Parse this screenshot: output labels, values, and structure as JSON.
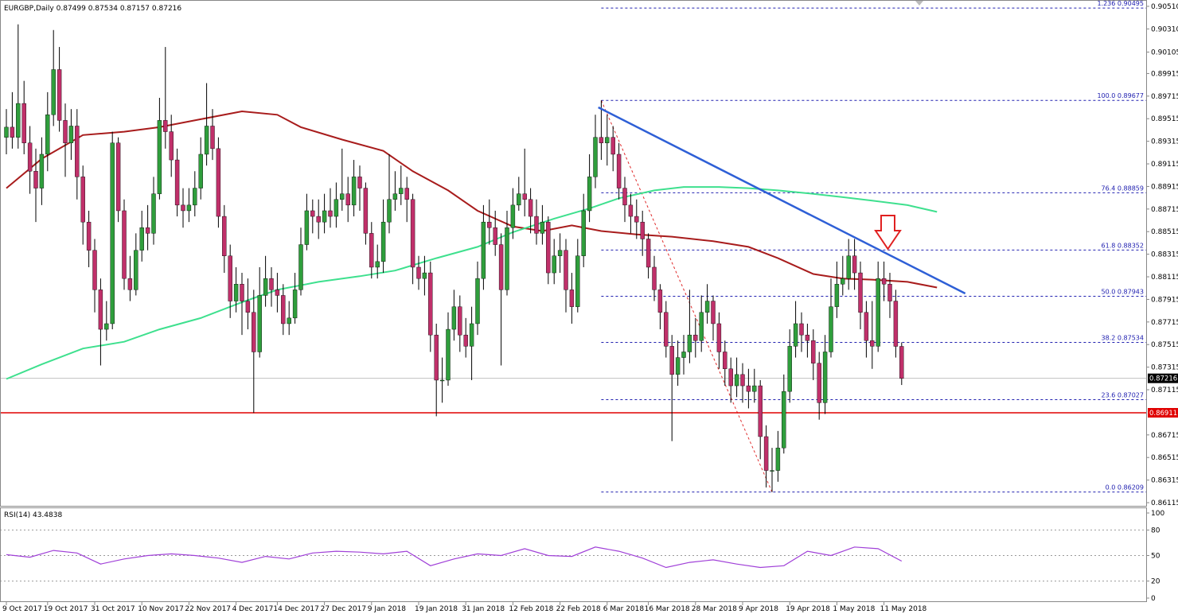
{
  "chart_data": {
    "type": "candlestick",
    "symbol": "EURGBP,Daily",
    "up_color": "#2f9e3c",
    "down_color": "#c0306a",
    "ylim": [
      0.86087,
      0.90566
    ],
    "yticks": [
      {
        "value": 0.9051,
        "label": "0.90510"
      },
      {
        "value": 0.9031,
        "label": "0.90310"
      },
      {
        "value": 0.90105,
        "label": "0.90105"
      },
      {
        "value": 0.89915,
        "label": "0.89915"
      },
      {
        "value": 0.89715,
        "label": "0.89715"
      },
      {
        "value": 0.89515,
        "label": "0.89515"
      },
      {
        "value": 0.89315,
        "label": "0.89315"
      },
      {
        "value": 0.89115,
        "label": "0.89115"
      },
      {
        "value": 0.88915,
        "label": "0.88915"
      },
      {
        "value": 0.88715,
        "label": "0.88715"
      },
      {
        "value": 0.88515,
        "label": "0.88515"
      },
      {
        "value": 0.88315,
        "label": "0.88315"
      },
      {
        "value": 0.88115,
        "label": "0.88115"
      },
      {
        "value": 0.87915,
        "label": "0.87915"
      },
      {
        "value": 0.87715,
        "label": "0.87715"
      },
      {
        "value": 0.87515,
        "label": "0.87515"
      },
      {
        "value": 0.87315,
        "label": "0.87315"
      },
      {
        "value": 0.87115,
        "label": "0.87115"
      },
      {
        "value": 0.86715,
        "label": "0.86715"
      },
      {
        "value": 0.86515,
        "label": "0.86515"
      },
      {
        "value": 0.86315,
        "label": "0.86315"
      },
      {
        "value": 0.86115,
        "label": "0.86115"
      }
    ],
    "xticks": [
      {
        "value": 0,
        "label": "9 Oct 2017"
      },
      {
        "value": 7,
        "label": "19 Oct 2017"
      },
      {
        "value": 15,
        "label": "31 Oct 2017"
      },
      {
        "value": 23,
        "label": "10 Nov 2017"
      },
      {
        "value": 31,
        "label": "22 Nov 2017"
      },
      {
        "value": 39,
        "label": "4 Dec 2017"
      },
      {
        "value": 46,
        "label": "14 Dec 2017"
      },
      {
        "value": 54,
        "label": "27 Dec 2017"
      },
      {
        "value": 62,
        "label": "9 Jan 2018"
      },
      {
        "value": 70,
        "label": "19 Jan 2018"
      },
      {
        "value": 78,
        "label": "31 Jan 2018"
      },
      {
        "value": 86,
        "label": "12 Feb 2018"
      },
      {
        "value": 94,
        "label": "22 Feb 2018"
      },
      {
        "value": 102,
        "label": "6 Mar 2018"
      },
      {
        "value": 109,
        "label": "16 Mar 2018"
      },
      {
        "value": 117,
        "label": "28 Mar 2018"
      },
      {
        "value": 125,
        "label": "9 Apr 2018"
      },
      {
        "value": 133,
        "label": "19 Apr 2018"
      },
      {
        "value": 141,
        "label": "1 May 2018"
      },
      {
        "value": 149,
        "label": "11 May 2018"
      }
    ],
    "ohlc": [
      [
        0.8935,
        0.896,
        0.892,
        0.8944
      ],
      [
        0.8944,
        0.8975,
        0.8925,
        0.8935
      ],
      [
        0.8935,
        0.9035,
        0.8925,
        0.8965
      ],
      [
        0.8965,
        0.8985,
        0.892,
        0.893
      ],
      [
        0.893,
        0.8945,
        0.8885,
        0.8905
      ],
      [
        0.8905,
        0.8925,
        0.886,
        0.889
      ],
      [
        0.889,
        0.8935,
        0.8875,
        0.892
      ],
      [
        0.892,
        0.8975,
        0.8905,
        0.8955
      ],
      [
        0.8955,
        0.903,
        0.8945,
        0.8995
      ],
      [
        0.8995,
        0.9015,
        0.894,
        0.895
      ],
      [
        0.895,
        0.8965,
        0.89,
        0.893
      ],
      [
        0.893,
        0.896,
        0.8915,
        0.8945
      ],
      [
        0.8945,
        0.896,
        0.888,
        0.89
      ],
      [
        0.89,
        0.891,
        0.884,
        0.886
      ],
      [
        0.886,
        0.887,
        0.882,
        0.8835
      ],
      [
        0.8835,
        0.8845,
        0.878,
        0.88
      ],
      [
        0.88,
        0.881,
        0.8733,
        0.8765
      ],
      [
        0.8765,
        0.879,
        0.8755,
        0.877
      ],
      [
        0.877,
        0.894,
        0.8765,
        0.893
      ],
      [
        0.893,
        0.8935,
        0.886,
        0.887
      ],
      [
        0.887,
        0.888,
        0.88,
        0.881
      ],
      [
        0.881,
        0.883,
        0.879,
        0.88
      ],
      [
        0.88,
        0.885,
        0.8795,
        0.8835
      ],
      [
        0.8835,
        0.887,
        0.8825,
        0.8855
      ],
      [
        0.8855,
        0.8875,
        0.8835,
        0.885
      ],
      [
        0.885,
        0.89,
        0.884,
        0.8885
      ],
      [
        0.8885,
        0.897,
        0.888,
        0.895
      ],
      [
        0.895,
        0.9015,
        0.8925,
        0.894
      ],
      [
        0.894,
        0.8955,
        0.89,
        0.8915
      ],
      [
        0.8915,
        0.8925,
        0.8865,
        0.8875
      ],
      [
        0.8875,
        0.889,
        0.8855,
        0.887
      ],
      [
        0.887,
        0.889,
        0.886,
        0.8875
      ],
      [
        0.8875,
        0.8905,
        0.8865,
        0.889
      ],
      [
        0.889,
        0.8935,
        0.888,
        0.892
      ],
      [
        0.892,
        0.8983,
        0.891,
        0.8945
      ],
      [
        0.8945,
        0.896,
        0.8915,
        0.8925
      ],
      [
        0.8925,
        0.8935,
        0.8855,
        0.8865
      ],
      [
        0.8865,
        0.8875,
        0.8815,
        0.883
      ],
      [
        0.883,
        0.884,
        0.8775,
        0.879
      ],
      [
        0.879,
        0.882,
        0.878,
        0.8805
      ],
      [
        0.8805,
        0.8815,
        0.876,
        0.879
      ],
      [
        0.879,
        0.881,
        0.8765,
        0.878
      ],
      [
        0.878,
        0.88,
        0.8691,
        0.8745
      ],
      [
        0.8745,
        0.882,
        0.874,
        0.8795
      ],
      [
        0.8795,
        0.883,
        0.8785,
        0.881
      ],
      [
        0.881,
        0.882,
        0.8785,
        0.88
      ],
      [
        0.88,
        0.8815,
        0.878,
        0.8795
      ],
      [
        0.8795,
        0.8805,
        0.876,
        0.877
      ],
      [
        0.877,
        0.879,
        0.876,
        0.8775
      ],
      [
        0.8775,
        0.8815,
        0.877,
        0.88
      ],
      [
        0.88,
        0.8855,
        0.8795,
        0.884
      ],
      [
        0.884,
        0.8885,
        0.8835,
        0.887
      ],
      [
        0.887,
        0.888,
        0.885,
        0.8865
      ],
      [
        0.8865,
        0.888,
        0.8845,
        0.886
      ],
      [
        0.886,
        0.8885,
        0.885,
        0.887
      ],
      [
        0.887,
        0.889,
        0.8855,
        0.8865
      ],
      [
        0.8865,
        0.8895,
        0.8855,
        0.888
      ],
      [
        0.888,
        0.8925,
        0.887,
        0.8885
      ],
      [
        0.8885,
        0.89,
        0.886,
        0.8875
      ],
      [
        0.8875,
        0.8915,
        0.8865,
        0.89
      ],
      [
        0.89,
        0.891,
        0.887,
        0.889
      ],
      [
        0.889,
        0.8895,
        0.884,
        0.885
      ],
      [
        0.885,
        0.886,
        0.881,
        0.882
      ],
      [
        0.882,
        0.884,
        0.881,
        0.8825
      ],
      [
        0.8825,
        0.888,
        0.8815,
        0.886
      ],
      [
        0.886,
        0.892,
        0.885,
        0.888
      ],
      [
        0.888,
        0.8905,
        0.887,
        0.8885
      ],
      [
        0.8885,
        0.891,
        0.8875,
        0.889
      ],
      [
        0.889,
        0.89,
        0.886,
        0.888
      ],
      [
        0.888,
        0.8885,
        0.8805,
        0.882
      ],
      [
        0.882,
        0.883,
        0.88,
        0.881
      ],
      [
        0.881,
        0.883,
        0.8795,
        0.8815
      ],
      [
        0.8815,
        0.8825,
        0.8745,
        0.876
      ],
      [
        0.876,
        0.877,
        0.8688,
        0.872
      ],
      [
        0.872,
        0.874,
        0.87,
        0.872
      ],
      [
        0.872,
        0.878,
        0.8715,
        0.8765
      ],
      [
        0.8765,
        0.88,
        0.8755,
        0.8785
      ],
      [
        0.8785,
        0.8795,
        0.8745,
        0.876
      ],
      [
        0.876,
        0.8775,
        0.874,
        0.875
      ],
      [
        0.875,
        0.8785,
        0.872,
        0.877
      ],
      [
        0.877,
        0.8825,
        0.876,
        0.881
      ],
      [
        0.881,
        0.8875,
        0.88,
        0.886
      ],
      [
        0.886,
        0.888,
        0.884,
        0.8855
      ],
      [
        0.8855,
        0.887,
        0.883,
        0.884
      ],
      [
        0.884,
        0.885,
        0.8733,
        0.88
      ],
      [
        0.88,
        0.887,
        0.8795,
        0.8855
      ],
      [
        0.8855,
        0.889,
        0.8845,
        0.8875
      ],
      [
        0.8875,
        0.89,
        0.887,
        0.8885
      ],
      [
        0.8885,
        0.8925,
        0.8865,
        0.888
      ],
      [
        0.888,
        0.889,
        0.885,
        0.8865
      ],
      [
        0.8865,
        0.888,
        0.884,
        0.885
      ],
      [
        0.885,
        0.8875,
        0.884,
        0.886
      ],
      [
        0.886,
        0.8865,
        0.8805,
        0.8815
      ],
      [
        0.8815,
        0.8845,
        0.8805,
        0.883
      ],
      [
        0.883,
        0.885,
        0.8815,
        0.8835
      ],
      [
        0.8835,
        0.8845,
        0.878,
        0.88
      ],
      [
        0.88,
        0.8815,
        0.877,
        0.8785
      ],
      [
        0.8785,
        0.8845,
        0.878,
        0.883
      ],
      [
        0.883,
        0.8885,
        0.882,
        0.887
      ],
      [
        0.887,
        0.892,
        0.886,
        0.89
      ],
      [
        0.89,
        0.8955,
        0.889,
        0.8935
      ],
      [
        0.8935,
        0.89677,
        0.8915,
        0.893
      ],
      [
        0.893,
        0.8955,
        0.891,
        0.8935
      ],
      [
        0.8935,
        0.8945,
        0.8905,
        0.892
      ],
      [
        0.892,
        0.893,
        0.888,
        0.889
      ],
      [
        0.889,
        0.89,
        0.886,
        0.8875
      ],
      [
        0.8875,
        0.8885,
        0.885,
        0.8865
      ],
      [
        0.8865,
        0.888,
        0.8845,
        0.886
      ],
      [
        0.886,
        0.887,
        0.883,
        0.8845
      ],
      [
        0.8845,
        0.885,
        0.881,
        0.882
      ],
      [
        0.882,
        0.883,
        0.879,
        0.88
      ],
      [
        0.88,
        0.8805,
        0.8765,
        0.878
      ],
      [
        0.878,
        0.879,
        0.874,
        0.875
      ],
      [
        0.875,
        0.876,
        0.8666,
        0.8725
      ],
      [
        0.8725,
        0.8755,
        0.8715,
        0.874
      ],
      [
        0.874,
        0.876,
        0.8725,
        0.8745
      ],
      [
        0.8745,
        0.88,
        0.8735,
        0.876
      ],
      [
        0.876,
        0.8775,
        0.874,
        0.8755
      ],
      [
        0.8755,
        0.8795,
        0.8745,
        0.878
      ],
      [
        0.878,
        0.8805,
        0.877,
        0.879
      ],
      [
        0.879,
        0.8795,
        0.8755,
        0.877
      ],
      [
        0.877,
        0.878,
        0.873,
        0.8745
      ],
      [
        0.8745,
        0.8755,
        0.8715,
        0.873
      ],
      [
        0.873,
        0.874,
        0.87,
        0.8715
      ],
      [
        0.8715,
        0.874,
        0.8705,
        0.8725
      ],
      [
        0.8725,
        0.8735,
        0.87,
        0.8715
      ],
      [
        0.8715,
        0.873,
        0.8695,
        0.871
      ],
      [
        0.871,
        0.873,
        0.87,
        0.8715
      ],
      [
        0.8715,
        0.872,
        0.865,
        0.867
      ],
      [
        0.867,
        0.868,
        0.8625,
        0.864
      ],
      [
        0.864,
        0.866,
        0.86209,
        0.864
      ],
      [
        0.864,
        0.8675,
        0.863,
        0.866
      ],
      [
        0.866,
        0.8725,
        0.8655,
        0.871
      ],
      [
        0.871,
        0.8765,
        0.87,
        0.875
      ],
      [
        0.875,
        0.879,
        0.874,
        0.877
      ],
      [
        0.877,
        0.878,
        0.8745,
        0.876
      ],
      [
        0.876,
        0.877,
        0.874,
        0.8755
      ],
      [
        0.8755,
        0.8765,
        0.872,
        0.8735
      ],
      [
        0.8735,
        0.8745,
        0.8685,
        0.87
      ],
      [
        0.87,
        0.876,
        0.869,
        0.8745
      ],
      [
        0.8745,
        0.881,
        0.874,
        0.8785
      ],
      [
        0.8785,
        0.8825,
        0.8775,
        0.8805
      ],
      [
        0.8805,
        0.883,
        0.8795,
        0.881
      ],
      [
        0.881,
        0.8845,
        0.88,
        0.883
      ],
      [
        0.883,
        0.8845,
        0.88,
        0.8815
      ],
      [
        0.8815,
        0.8825,
        0.8765,
        0.878
      ],
      [
        0.878,
        0.879,
        0.874,
        0.8755
      ],
      [
        0.8755,
        0.879,
        0.873,
        0.875
      ],
      [
        0.875,
        0.8825,
        0.8745,
        0.881
      ],
      [
        0.881,
        0.8825,
        0.879,
        0.8805
      ],
      [
        0.8805,
        0.8815,
        0.8775,
        0.879
      ],
      [
        0.879,
        0.88,
        0.874,
        0.87499
      ],
      [
        0.87499,
        0.87534,
        0.87157,
        0.87216
      ]
    ],
    "current_price_color": "#c0c0c0",
    "moving_averages": [
      {
        "color": "#a81c1c",
        "x": [
          0,
          6,
          13,
          20,
          26,
          33,
          40,
          46,
          50,
          57,
          64,
          69,
          75,
          80,
          86,
          91,
          96,
          101,
          107,
          113,
          120,
          126,
          131,
          137,
          142,
          147,
          153,
          158
        ],
        "values": [
          0.889,
          0.8916,
          0.8937,
          0.894,
          0.8944,
          0.8951,
          0.8958,
          0.8955,
          0.8944,
          0.8933,
          0.8923,
          0.8905,
          0.8888,
          0.887,
          0.8856,
          0.8852,
          0.8857,
          0.8852,
          0.8849,
          0.8847,
          0.8843,
          0.8838,
          0.8828,
          0.8814,
          0.881,
          0.8809,
          0.8807,
          0.8802
        ]
      },
      {
        "color": "#3ee08e",
        "x": [
          0,
          6,
          13,
          20,
          26,
          33,
          40,
          46,
          53,
          60,
          66,
          73,
          80,
          86,
          93,
          99,
          104,
          110,
          115,
          121,
          126,
          131,
          137,
          142,
          147,
          153,
          158
        ],
        "values": [
          0.8721,
          0.8734,
          0.8748,
          0.8754,
          0.8765,
          0.8775,
          0.8789,
          0.88,
          0.8807,
          0.8812,
          0.8817,
          0.8828,
          0.8838,
          0.8851,
          0.8863,
          0.8872,
          0.8881,
          0.8888,
          0.8891,
          0.8891,
          0.889,
          0.8888,
          0.8885,
          0.8882,
          0.8879,
          0.8875,
          0.8869
        ]
      }
    ],
    "trendline": {
      "color": "#2e5fd6",
      "x": [
        100.5,
        162.8
      ],
      "values": [
        0.89615,
        0.87967
      ]
    },
    "fibonacci": {
      "color": "#2020b0",
      "x_start": 101,
      "diagonal_color": "#e03030",
      "diagonal_x": [
        101,
        130
      ],
      "levels": [
        {
          "label": "1.236",
          "value": 0.90495
        },
        {
          "label": "100.0",
          "value": 0.89677
        },
        {
          "label": "76.4",
          "value": 0.88859
        },
        {
          "label": "61.8",
          "value": 0.88352
        },
        {
          "label": "50.0",
          "value": 0.87943
        },
        {
          "label": "38.2",
          "value": 0.87534
        },
        {
          "label": "23.6",
          "value": 0.87027
        },
        {
          "label": "0.0",
          "value": 0.86209
        }
      ]
    },
    "support": {
      "value": 0.86911,
      "color": "#e00000"
    },
    "rsi": {
      "title": "RSI(14)",
      "color": "#a040d8",
      "ylim": [
        0,
        100
      ],
      "yticks": [
        0,
        20,
        50,
        80,
        100
      ],
      "x": [
        0,
        4,
        8,
        12,
        16,
        20,
        24,
        28,
        32,
        36,
        40,
        44,
        48,
        52,
        56,
        60,
        64,
        68,
        72,
        76,
        80,
        84,
        88,
        92,
        96,
        100,
        104,
        108,
        112,
        116,
        120,
        124,
        128,
        132,
        136,
        140,
        144,
        148,
        152
      ],
      "values": [
        51,
        48,
        56,
        53,
        40,
        46,
        50,
        52,
        50,
        47,
        42,
        49,
        46,
        53,
        55,
        54,
        52,
        55,
        38,
        46,
        52,
        50,
        58,
        50,
        49,
        60,
        55,
        47,
        36,
        42,
        45,
        40,
        36,
        38,
        55,
        50,
        60,
        58,
        43.4838
      ]
    }
  }
}
